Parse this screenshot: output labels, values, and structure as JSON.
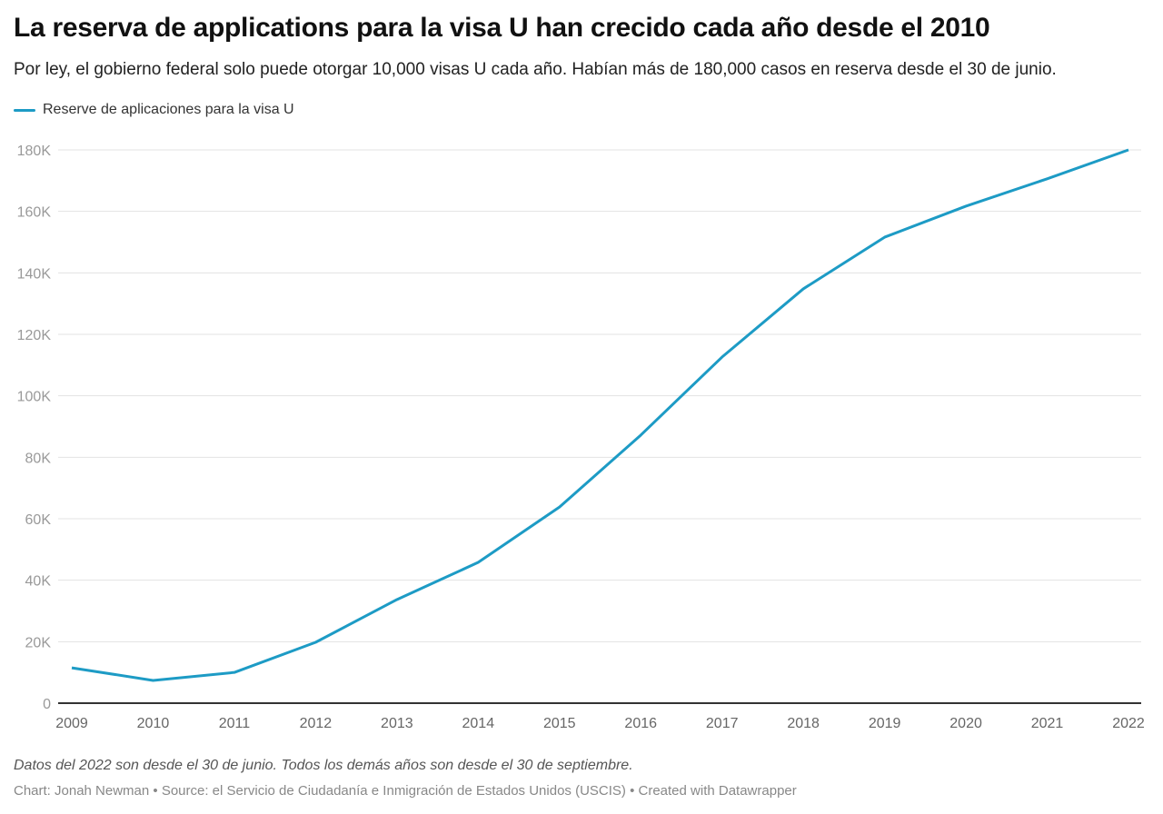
{
  "chart_data": {
    "type": "line",
    "title": "La reserva de applications para la visa U han crecido cada año desde el 2010",
    "subtitle": "Por ley, el gobierno federal solo puede otorgar 10,000 visas U cada año. Habían más de 180,000 casos en reserva desde el 30 de junio.",
    "x": [
      2009,
      2010,
      2011,
      2012,
      2013,
      2014,
      2015,
      2016,
      2017,
      2018,
      2019,
      2020,
      2021,
      2022
    ],
    "series": [
      {
        "name": "Reserve de aplicaciones para la visa U",
        "color": "#1d9bc5",
        "values": [
          11500,
          7400,
          10000,
          19800,
          33700,
          45800,
          63800,
          87200,
          112600,
          134800,
          151600,
          161700,
          170600,
          180000
        ]
      }
    ],
    "ylim": [
      0,
      180000
    ],
    "yticks": [
      0,
      20000,
      40000,
      60000,
      80000,
      100000,
      120000,
      140000,
      160000,
      180000
    ],
    "ytick_labels": [
      "0",
      "20K",
      "40K",
      "60K",
      "80K",
      "100K",
      "120K",
      "140K",
      "160K",
      "180K"
    ],
    "xtick_labels": [
      "2009",
      "2010",
      "2011",
      "2012",
      "2013",
      "2014",
      "2015",
      "2016",
      "2017",
      "2018",
      "2019",
      "2020",
      "2021",
      "2022"
    ],
    "grid": true,
    "legend_position": "top-left",
    "note": "Datos del 2022 son desde el 30 de junio. Todos los demás años son desde el 30 de septiembre.",
    "credit": "Chart: Jonah Newman • Source: el Servicio de Ciudadanía e Inmigración de Estados Unidos (USCIS) • Created with Datawrapper"
  }
}
